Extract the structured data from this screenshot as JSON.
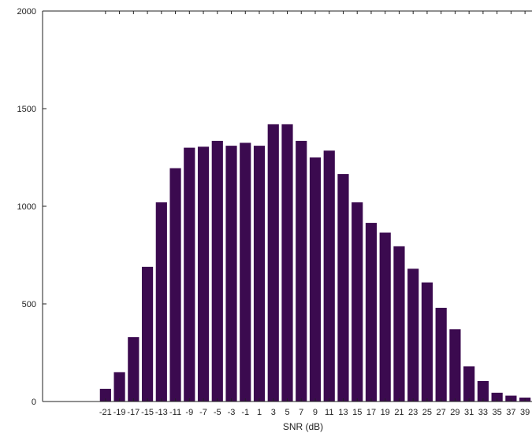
{
  "chart_data": {
    "type": "bar",
    "title": "",
    "xlabel": "SNR (dB)",
    "ylabel": "",
    "ylim": [
      0,
      2000
    ],
    "yticks": [
      0,
      500,
      1000,
      1500,
      2000
    ],
    "ytick_labels": [
      "0",
      "500",
      "1000",
      "1500",
      "2000"
    ],
    "grid": false,
    "bar_color": "#3b0a4f",
    "categories": [
      "-21",
      "-19",
      "-17",
      "-15",
      "-13",
      "-11",
      "-9",
      "-7",
      "-5",
      "-3",
      "-1",
      "1",
      "3",
      "5",
      "7",
      "9",
      "11",
      "13",
      "15",
      "17",
      "19",
      "21",
      "23",
      "25",
      "27",
      "29",
      "31",
      "33",
      "35",
      "37",
      "39"
    ],
    "values": [
      65,
      150,
      330,
      690,
      1020,
      1195,
      1300,
      1305,
      1335,
      1310,
      1325,
      1310,
      1420,
      1420,
      1335,
      1250,
      1285,
      1165,
      1020,
      915,
      865,
      795,
      680,
      610,
      480,
      370,
      180,
      105,
      45,
      30,
      20
    ]
  }
}
